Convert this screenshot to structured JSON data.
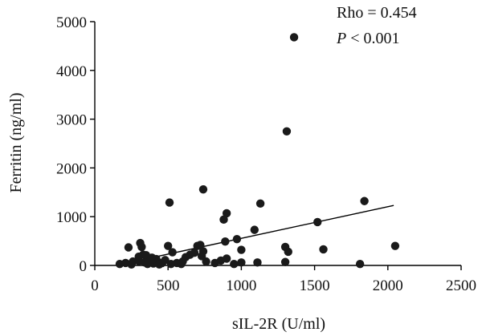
{
  "chart_data": {
    "type": "scatter",
    "xlabel": "sIL-2R (U/ml)",
    "ylabel": "Ferritin (ng/ml)",
    "xlim": [
      0,
      2500
    ],
    "ylim": [
      0,
      5000
    ],
    "x_ticks": [
      0,
      500,
      1000,
      1500,
      2000,
      2500
    ],
    "y_ticks": [
      0,
      1000,
      2000,
      3000,
      4000,
      5000
    ],
    "x_tick_labels": [
      "0",
      "500",
      "1000",
      "1500",
      "2000",
      "2500"
    ],
    "y_tick_labels": [
      "0",
      "1000",
      "2000",
      "3000",
      "4000",
      "5000"
    ],
    "grid": false,
    "annotations": {
      "rho": "Rho = 0.454",
      "p_italic": "P",
      "p_rest": " < 0.001"
    },
    "trendline": {
      "x": [
        150,
        2040
      ],
      "y": [
        5,
        1230
      ]
    },
    "series": [
      {
        "points": [
          [
            1360,
            4680
          ],
          [
            1310,
            2750
          ],
          [
            1840,
            1320
          ],
          [
            740,
            1560
          ],
          [
            510,
            1290
          ],
          [
            1130,
            1270
          ],
          [
            900,
            1070
          ],
          [
            880,
            940
          ],
          [
            1520,
            890
          ],
          [
            1090,
            730
          ],
          [
            970,
            540
          ],
          [
            890,
            490
          ],
          [
            2050,
            400
          ],
          [
            1300,
            380
          ],
          [
            1560,
            330
          ],
          [
            1320,
            280
          ],
          [
            1000,
            320
          ],
          [
            230,
            370
          ],
          [
            310,
            460
          ],
          [
            320,
            380
          ],
          [
            330,
            220
          ],
          [
            300,
            180
          ],
          [
            350,
            210
          ],
          [
            390,
            160
          ],
          [
            420,
            130
          ],
          [
            380,
            100
          ],
          [
            170,
            30
          ],
          [
            210,
            50
          ],
          [
            260,
            80
          ],
          [
            300,
            90
          ],
          [
            340,
            60
          ],
          [
            400,
            40
          ],
          [
            430,
            70
          ],
          [
            460,
            50
          ],
          [
            480,
            110
          ],
          [
            500,
            400
          ],
          [
            520,
            30
          ],
          [
            530,
            270
          ],
          [
            560,
            50
          ],
          [
            600,
            80
          ],
          [
            620,
            170
          ],
          [
            650,
            220
          ],
          [
            680,
            260
          ],
          [
            700,
            400
          ],
          [
            720,
            420
          ],
          [
            740,
            290
          ],
          [
            760,
            80
          ],
          [
            820,
            50
          ],
          [
            860,
            100
          ],
          [
            900,
            140
          ],
          [
            950,
            30
          ],
          [
            1000,
            60
          ],
          [
            1110,
            60
          ],
          [
            1300,
            70
          ],
          [
            1810,
            30
          ],
          [
            360,
            30
          ],
          [
            440,
            20
          ],
          [
            590,
            30
          ],
          [
            730,
            190
          ],
          [
            250,
            20
          ]
        ]
      }
    ]
  }
}
